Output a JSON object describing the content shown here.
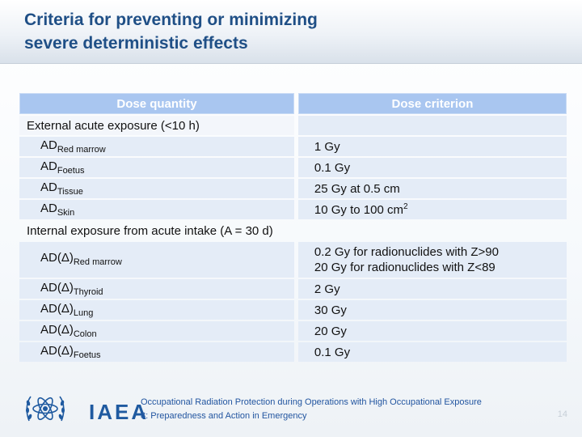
{
  "slide": {
    "title_line1": "Criteria for preventing or minimizing",
    "title_line2": "severe deterministic effects",
    "page_number": "14"
  },
  "table": {
    "headers": [
      "Dose quantity",
      "Dose criterion"
    ],
    "section1": "External acute exposure (<10 h)",
    "rows1": [
      {
        "base": "AD",
        "sub": "Red marrow",
        "value": "1 Gy"
      },
      {
        "base": "AD",
        "sub": "Foetus",
        "value": "0.1 Gy"
      },
      {
        "base": "AD",
        "sub": "Tissue",
        "value": "25 Gy at 0.5 cm"
      },
      {
        "base": "AD",
        "sub": "Skin",
        "value_main": "10 Gy to 100 cm",
        "value_sup": "2"
      }
    ],
    "section2": "Internal exposure from acute intake (A = 30 d)",
    "rows2": [
      {
        "base": "AD(Δ)",
        "sub": "Red marrow",
        "value_line1": "0.2 Gy for radionuclides with Z>90",
        "value_line2": "20 Gy for radionuclides with Z<89"
      },
      {
        "base": "AD(Δ)",
        "sub": "Thyroid",
        "value": "2 Gy"
      },
      {
        "base": "AD(Δ)",
        "sub": "Lung",
        "value": "30 Gy"
      },
      {
        "base": "AD(Δ)",
        "sub": "Colon",
        "value": "20 Gy"
      },
      {
        "base": "AD(Δ)",
        "sub": "Foetus",
        "value": "0.1 Gy"
      }
    ]
  },
  "footer": {
    "logo_text": "IAEA",
    "line1": "Occupational Radiation Protection during Operations with High Occupational Exposure",
    "line2": "8: Preparedness and Action in Emergency"
  },
  "colors": {
    "title": "#1f4f86",
    "header_bg": "#a9c6f0",
    "row_bg": "#e4ecf7",
    "footer_text": "#2255a0"
  }
}
